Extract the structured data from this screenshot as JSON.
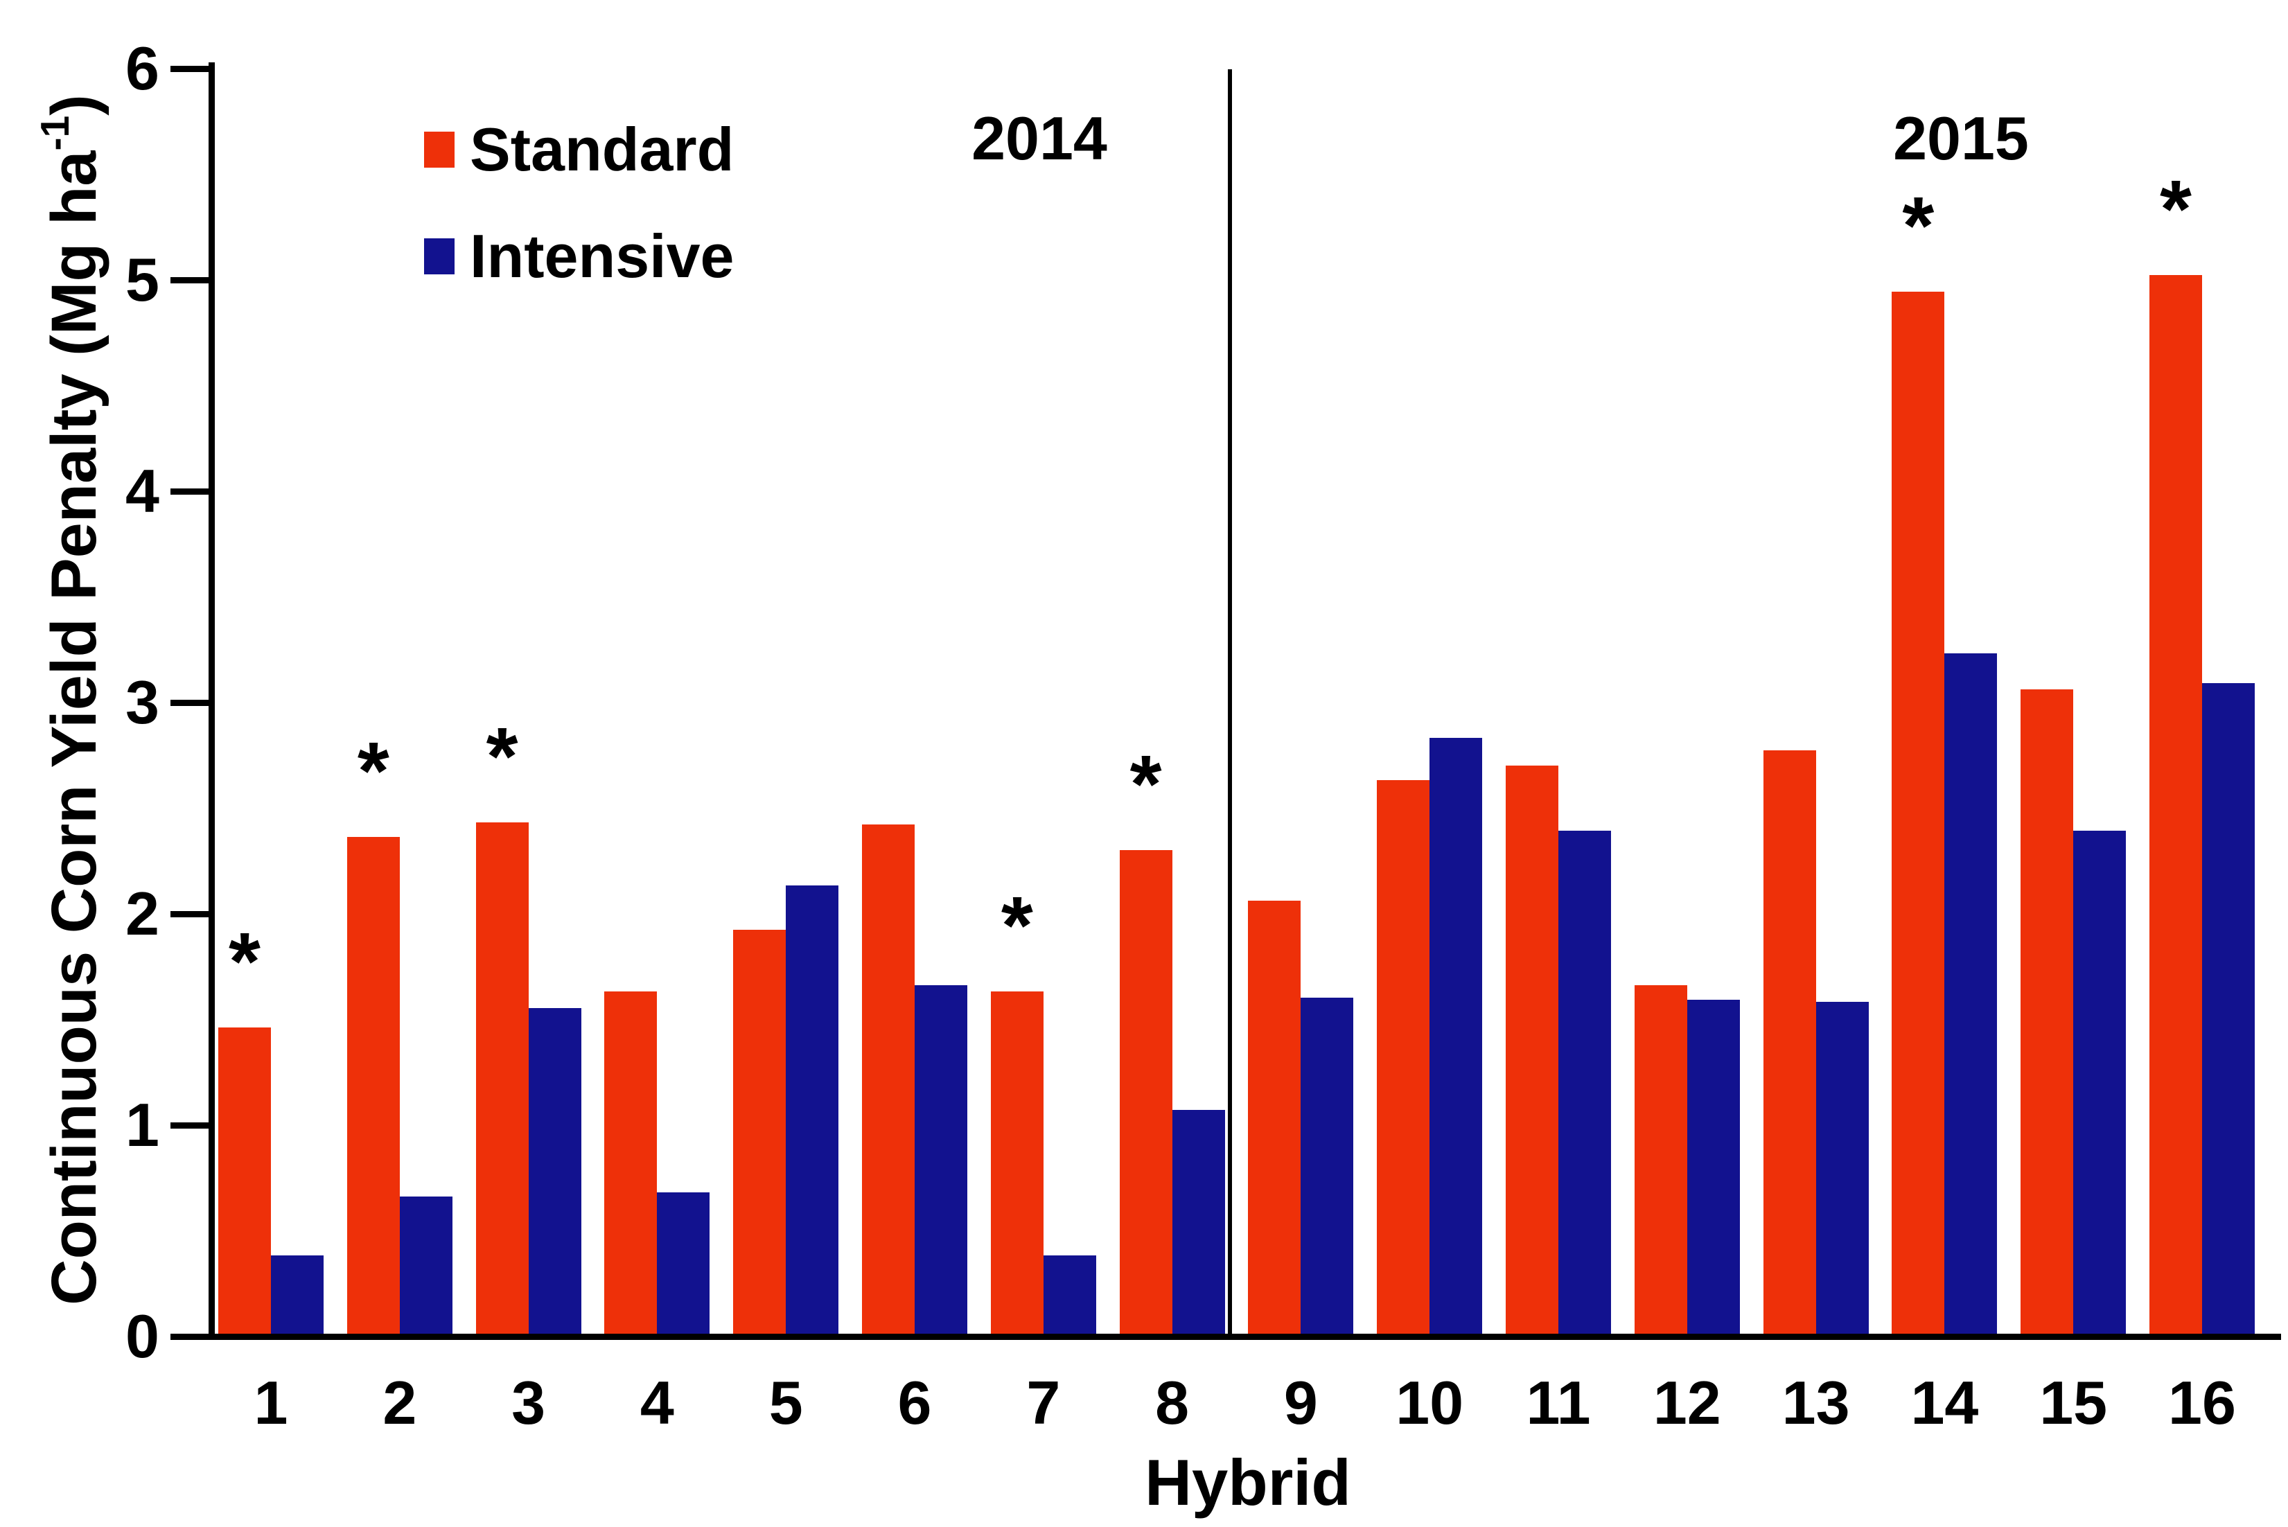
{
  "chart_data": {
    "type": "bar",
    "title": "",
    "categories": [
      "1",
      "2",
      "3",
      "4",
      "5",
      "6",
      "7",
      "8",
      "9",
      "10",
      "11",
      "12",
      "13",
      "14",
      "15",
      "16"
    ],
    "series": [
      {
        "name": "Standard",
        "color": "#EE3009",
        "values": [
          1.45,
          2.35,
          2.42,
          1.62,
          1.91,
          2.41,
          1.62,
          2.29,
          2.05,
          2.62,
          2.69,
          1.65,
          2.76,
          4.93,
          3.05,
          5.01
        ]
      },
      {
        "name": "Intensive",
        "color": "#12128F",
        "values": [
          0.37,
          0.65,
          1.54,
          0.67,
          2.12,
          1.65,
          0.37,
          1.06,
          1.59,
          2.82,
          2.38,
          1.58,
          1.57,
          3.22,
          2.38,
          3.08
        ]
      }
    ],
    "significance_marker": "*",
    "significant_categories": [
      "1",
      "2",
      "3",
      "7",
      "8",
      "14",
      "16"
    ],
    "panels": [
      {
        "label": "2014",
        "categories": [
          "1",
          "2",
          "3",
          "4",
          "5",
          "6",
          "7",
          "8"
        ]
      },
      {
        "label": "2015",
        "categories": [
          "9",
          "10",
          "11",
          "12",
          "13",
          "14",
          "15",
          "16"
        ]
      }
    ],
    "divider_after_category": "8",
    "xlabel": "Hybrid",
    "ylabel_parts": {
      "prefix": "Continuous Corn Yield Penalty (Mg ha",
      "sup": "-1",
      "suffix": ")"
    },
    "ylim": [
      0,
      6
    ],
    "yticks": [
      0,
      1,
      2,
      3,
      4,
      5,
      6
    ],
    "grid": "off",
    "legend_position": "top-left-inside"
  }
}
